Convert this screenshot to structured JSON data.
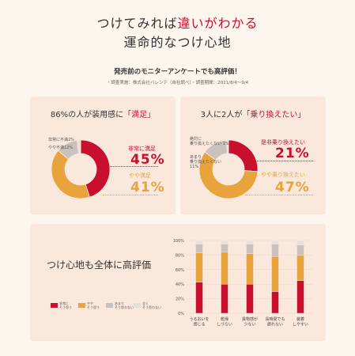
{
  "header": {
    "line1_a": "つけてみれば",
    "line1_b": "違いがわかる",
    "line2": "運命的なつけ心地",
    "subtitle": "発売前のモニターアンケートでも高評価！",
    "note": "・調査実施：株式会社バレンテ（自社調べ）・調査期間：2021/8/4〜9/4"
  },
  "card1": {
    "title_a": "86%の人が装用感に",
    "title_b": "「満足」",
    "label_red": "非常に満足",
    "pct_red": "45%",
    "label_orange": "やや満足",
    "pct_orange": "41%",
    "label_small1": "非常に不満2%",
    "label_small2": "やや不満12%"
  },
  "card2": {
    "title_a": "3人に2人が",
    "title_b": "「乗り換えたい」",
    "label_red": "是非乗り換えたい",
    "pct_red": "21%",
    "label_orange": "やや乗り換えたい",
    "pct_orange": "47%",
    "label_small1": "絶対に\n乗り換えたくない 1%",
    "label_small2": "あまり\n乗り換えたくない\n11%"
  },
  "card3": {
    "title": "つけ心地も全体に高評価"
  },
  "colors": {
    "red": "#c8102e",
    "orange": "#e8a33d",
    "gray": "#c9c2bc",
    "lightgray": "#e6e0db"
  },
  "chart_data": [
    {
      "type": "pie",
      "categories": [
        "非常に満足",
        "やや満足",
        "やや不満",
        "非常に不満"
      ],
      "values": [
        45,
        41,
        12,
        2
      ],
      "title": "86%の人が装用感に「満足」"
    },
    {
      "type": "pie",
      "categories": [
        "是非乗り換えたい",
        "やや乗り換えたい",
        "あまり乗り換えたくない",
        "絶対に乗り換えたくない"
      ],
      "values": [
        21,
        47,
        11,
        1
      ],
      "title": "3人に2人が「乗り換えたい」"
    },
    {
      "type": "bar",
      "stacked": true,
      "categories": [
        "うるおいを\n感じる",
        "乾燥\nしづらい",
        "異物感が\n少ない",
        "長時間でも\n疲れない",
        "装着\nしやすい"
      ],
      "series": [
        {
          "name": "非常に\nそう思う",
          "values": [
            43,
            40,
            40,
            30,
            45
          ]
        },
        {
          "name": "やや\nそう思う",
          "values": [
            40,
            44,
            42,
            48,
            35
          ]
        },
        {
          "name": "あまり\nそう思わない",
          "values": [
            12,
            11,
            13,
            17,
            14
          ]
        },
        {
          "name": "全く\nそう思わない",
          "values": [
            5,
            5,
            5,
            5,
            6
          ]
        }
      ],
      "yticks": [
        "100%",
        "80%",
        "60%",
        "40%",
        "20%",
        "0%"
      ],
      "ylim": [
        0,
        100
      ]
    }
  ]
}
